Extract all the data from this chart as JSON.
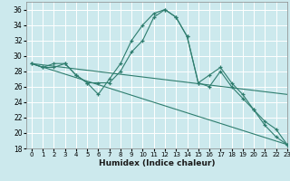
{
  "title": "",
  "xlabel": "Humidex (Indice chaleur)",
  "ylabel": "",
  "xlim": [
    -0.5,
    23
  ],
  "ylim": [
    18,
    37
  ],
  "yticks": [
    18,
    20,
    22,
    24,
    26,
    28,
    30,
    32,
    34,
    36
  ],
  "xticks": [
    0,
    1,
    2,
    3,
    4,
    5,
    6,
    7,
    8,
    9,
    10,
    11,
    12,
    13,
    14,
    15,
    16,
    17,
    18,
    19,
    20,
    21,
    22,
    23
  ],
  "bg_color": "#cce9ed",
  "grid_color": "#ffffff",
  "line_color": "#2e7d6e",
  "lines": [
    {
      "x": [
        0,
        1,
        2,
        3,
        4,
        5,
        6,
        7,
        8,
        9,
        10,
        11,
        12,
        13,
        14,
        15,
        16,
        17,
        18,
        19,
        20,
        21,
        22,
        23
      ],
      "y": [
        29.0,
        28.5,
        29.0,
        29.0,
        27.5,
        26.5,
        25.0,
        27.0,
        29.0,
        32.0,
        34.0,
        35.5,
        36.0,
        35.0,
        32.5,
        26.5,
        27.5,
        28.5,
        26.5,
        25.0,
        23.0,
        21.0,
        19.5,
        18.5
      ],
      "markers": true
    },
    {
      "x": [
        0,
        1,
        2,
        3,
        4,
        5,
        6,
        7,
        8,
        9,
        10,
        11,
        12,
        13,
        14,
        15,
        16,
        17,
        18,
        19,
        20,
        21,
        22,
        23
      ],
      "y": [
        29.0,
        28.5,
        28.5,
        29.0,
        27.5,
        26.5,
        26.5,
        26.5,
        28.0,
        30.5,
        32.0,
        35.0,
        36.0,
        35.0,
        32.5,
        26.5,
        26.0,
        28.0,
        26.0,
        24.5,
        23.0,
        21.5,
        20.5,
        18.5
      ],
      "markers": true
    },
    {
      "x": [
        0,
        23
      ],
      "y": [
        29.0,
        18.5
      ],
      "markers": false
    },
    {
      "x": [
        0,
        23
      ],
      "y": [
        29.0,
        25.0
      ],
      "markers": false
    }
  ]
}
